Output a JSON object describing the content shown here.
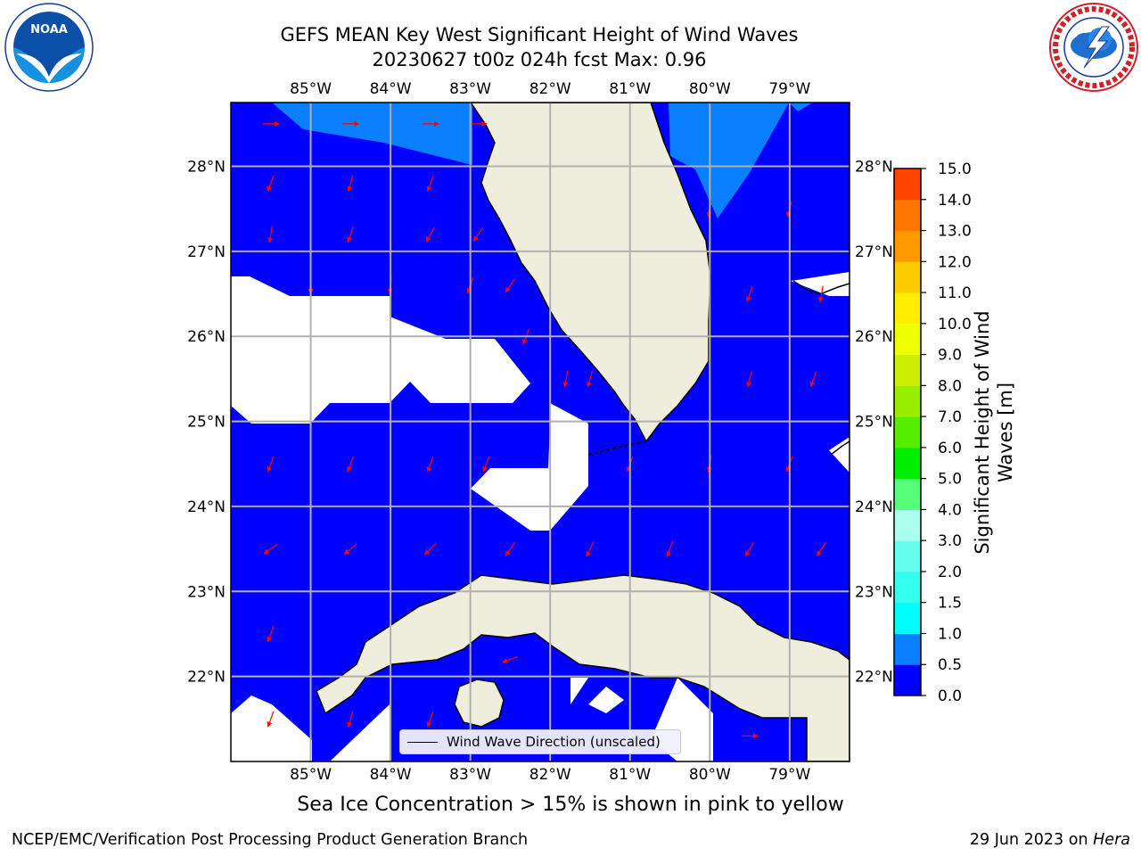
{
  "title": {
    "line1": "GEFS MEAN Key West Significant Height of Wind Waves",
    "line2": "20230627 t00z 024h fcst   Max: 0.96"
  },
  "map": {
    "lon_range": [
      -86,
      -78.25
    ],
    "lat_range": [
      21.0,
      28.75
    ],
    "lon_ticks": [
      {
        "value": -85,
        "label": "85°W"
      },
      {
        "value": -84,
        "label": "84°W"
      },
      {
        "value": -83,
        "label": "83°W"
      },
      {
        "value": -82,
        "label": "82°W"
      },
      {
        "value": -81,
        "label": "81°W"
      },
      {
        "value": -80,
        "label": "80°W"
      },
      {
        "value": -79,
        "label": "79°W"
      }
    ],
    "lat_ticks": [
      {
        "value": 28,
        "label": "28°N"
      },
      {
        "value": 27,
        "label": "27°N"
      },
      {
        "value": 26,
        "label": "26°N"
      },
      {
        "value": 25,
        "label": "25°N"
      },
      {
        "value": 24,
        "label": "24°N"
      },
      {
        "value": 23,
        "label": "23°N"
      },
      {
        "value": 22,
        "label": "22°N"
      }
    ],
    "gridlines": true,
    "colors": {
      "wave_low": "#0000ff",
      "wave_mid": "#0a7fff",
      "land": "#efeedd",
      "coast": "#000000",
      "arrow": "#ff0000",
      "nodata": "#ffffff"
    }
  },
  "colorbar": {
    "label_line1": "Significant Height of Wind",
    "label_line2": "Waves [m]",
    "levels": [
      0.0,
      0.5,
      1.0,
      1.5,
      2.0,
      3.0,
      4.0,
      5.0,
      6.0,
      7.0,
      8.0,
      9.0,
      10.0,
      11.0,
      12.0,
      13.0,
      14.0,
      15.0
    ],
    "tick_labels": [
      "0.0",
      "0.5",
      "1.0",
      "1.5",
      "2.0",
      "3.0",
      "4.0",
      "5.0",
      "6.0",
      "7.0",
      "8.0",
      "9.0",
      "10.0",
      "11.0",
      "12.0",
      "13.0",
      "14.0",
      "15.0"
    ],
    "colors": [
      "#0000ff",
      "#0a7fff",
      "#00ffff",
      "#33ffee",
      "#66ffee",
      "#aaffee",
      "#55ff77",
      "#00ee00",
      "#55ee00",
      "#99ee00",
      "#ccee00",
      "#eeff00",
      "#ffee00",
      "#ffcc00",
      "#ff9900",
      "#ff7700",
      "#ff4400",
      "#ff0000"
    ]
  },
  "legend": {
    "label": "Wind Wave Direction (unscaled)"
  },
  "ice_note": "Sea Ice Concentration > 15% is shown in pink to yellow",
  "footer": {
    "left": "NCEP/EMC/Verification Post Processing Product Generation Branch",
    "right_date": "29 Jun 2023 on",
    "right_host": "Hera"
  },
  "logos": {
    "noaa_icon": "noaa-logo-icon",
    "noaa_text": "NOAA",
    "nws_icon": "nws-logo-icon"
  },
  "wind_wave_field": {
    "mean_direction_deg": 200,
    "max_height_m": 0.96,
    "arrows": [
      {
        "lon": -85.5,
        "lat": 28.5,
        "dir": 90
      },
      {
        "lon": -84.5,
        "lat": 28.5,
        "dir": 90
      },
      {
        "lon": -83.5,
        "lat": 28.5,
        "dir": 90
      },
      {
        "lon": -82.9,
        "lat": 28.5,
        "dir": 90
      },
      {
        "lon": -85.5,
        "lat": 27.8,
        "dir": 200
      },
      {
        "lon": -84.5,
        "lat": 27.8,
        "dir": 195
      },
      {
        "lon": -83.5,
        "lat": 27.8,
        "dir": 200
      },
      {
        "lon": -85.5,
        "lat": 27.2,
        "dir": 190
      },
      {
        "lon": -84.5,
        "lat": 27.2,
        "dir": 200
      },
      {
        "lon": -83.5,
        "lat": 27.2,
        "dir": 210
      },
      {
        "lon": -82.9,
        "lat": 27.2,
        "dir": 215
      },
      {
        "lon": -85.0,
        "lat": 26.6,
        "dir": 180
      },
      {
        "lon": -84.0,
        "lat": 26.6,
        "dir": 185
      },
      {
        "lon": -83.0,
        "lat": 26.6,
        "dir": 200
      },
      {
        "lon": -82.5,
        "lat": 26.6,
        "dir": 215
      },
      {
        "lon": -82.3,
        "lat": 26.0,
        "dir": 200
      },
      {
        "lon": -81.8,
        "lat": 25.5,
        "dir": 190
      },
      {
        "lon": -81.5,
        "lat": 25.5,
        "dir": 195
      },
      {
        "lon": -85.5,
        "lat": 24.5,
        "dir": 200
      },
      {
        "lon": -84.5,
        "lat": 24.5,
        "dir": 200
      },
      {
        "lon": -83.5,
        "lat": 24.5,
        "dir": 200
      },
      {
        "lon": -82.8,
        "lat": 24.5,
        "dir": 200
      },
      {
        "lon": -81.0,
        "lat": 24.5,
        "dir": 200
      },
      {
        "lon": -80.0,
        "lat": 24.5,
        "dir": 190
      },
      {
        "lon": -79.0,
        "lat": 24.5,
        "dir": 200
      },
      {
        "lon": -85.5,
        "lat": 23.5,
        "dir": 235
      },
      {
        "lon": -84.5,
        "lat": 23.5,
        "dir": 230
      },
      {
        "lon": -83.5,
        "lat": 23.5,
        "dir": 225
      },
      {
        "lon": -82.5,
        "lat": 23.5,
        "dir": 215
      },
      {
        "lon": -81.5,
        "lat": 23.5,
        "dir": 205
      },
      {
        "lon": -80.5,
        "lat": 23.5,
        "dir": 200
      },
      {
        "lon": -79.5,
        "lat": 23.5,
        "dir": 210
      },
      {
        "lon": -78.6,
        "lat": 23.5,
        "dir": 215
      },
      {
        "lon": -85.5,
        "lat": 22.5,
        "dir": 200
      },
      {
        "lon": -85.5,
        "lat": 21.5,
        "dir": 200
      },
      {
        "lon": -84.5,
        "lat": 21.5,
        "dir": 195
      },
      {
        "lon": -83.5,
        "lat": 21.5,
        "dir": 200
      },
      {
        "lon": -82.5,
        "lat": 22.2,
        "dir": 250
      },
      {
        "lon": -79.5,
        "lat": 21.3,
        "dir": 90
      },
      {
        "lon": -80.0,
        "lat": 27.5,
        "dir": 190
      },
      {
        "lon": -79.0,
        "lat": 27.5,
        "dir": 195
      },
      {
        "lon": -79.5,
        "lat": 26.5,
        "dir": 200
      },
      {
        "lon": -78.6,
        "lat": 26.5,
        "dir": 190
      },
      {
        "lon": -79.5,
        "lat": 25.5,
        "dir": 195
      },
      {
        "lon": -78.7,
        "lat": 25.5,
        "dir": 200
      }
    ]
  }
}
